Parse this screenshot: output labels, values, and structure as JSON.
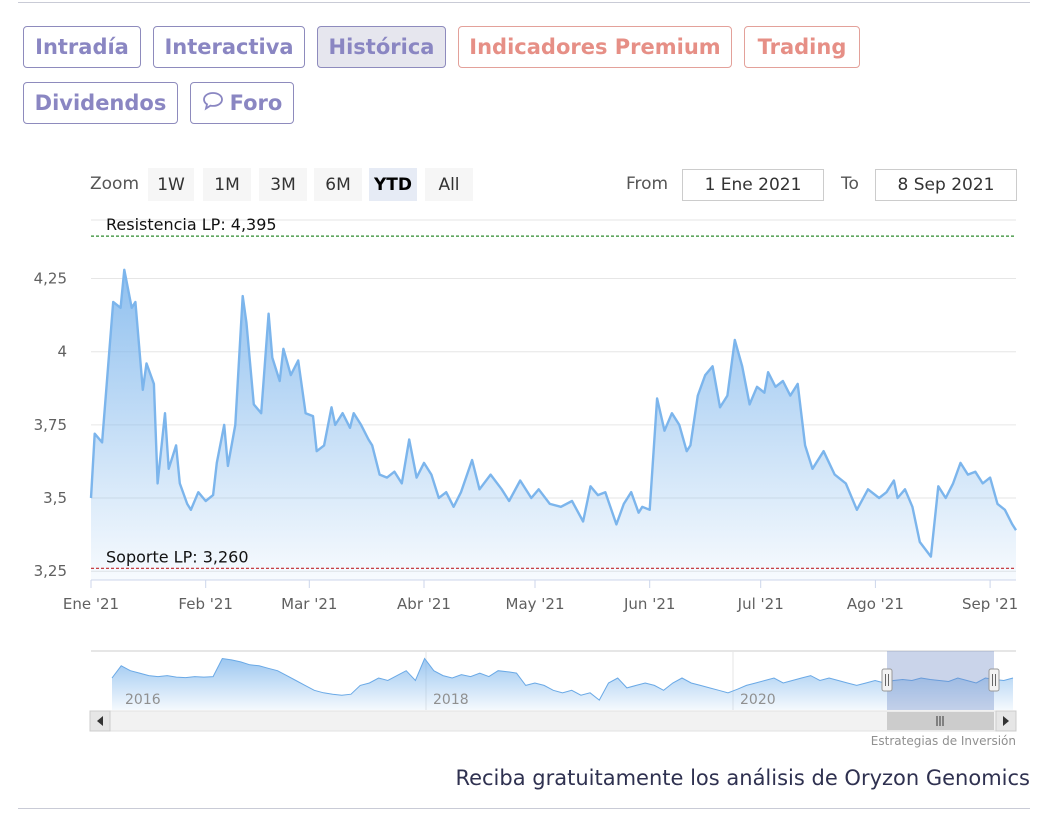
{
  "tabs": [
    {
      "label": "Intradía",
      "active": false,
      "premium": false
    },
    {
      "label": "Interactiva",
      "active": false,
      "premium": false
    },
    {
      "label": "Histórica",
      "active": true,
      "premium": false
    },
    {
      "label": "Indicadores Premium",
      "active": false,
      "premium": true
    },
    {
      "label": "Trading",
      "active": false,
      "premium": true
    },
    {
      "label": "Dividendos",
      "active": false,
      "premium": false
    },
    {
      "label": "Foro",
      "active": false,
      "premium": false,
      "icon": "speech-bubble-icon"
    }
  ],
  "range_selector": {
    "zoom_label": "Zoom",
    "buttons": [
      "1W",
      "1M",
      "3M",
      "6M",
      "YTD",
      "All"
    ],
    "selected": "YTD",
    "from_label": "From",
    "from_value": "1 Ene 2021",
    "to_label": "To",
    "to_value": "8 Sep 2021"
  },
  "chart_data": {
    "type": "area",
    "y_ticks": [
      "4,25",
      "4",
      "3,75",
      "3,5",
      "3,25"
    ],
    "y_tick_values": [
      4.25,
      4.0,
      3.75,
      3.5,
      3.25
    ],
    "x_ticks": [
      "Ene '21",
      "Feb '21",
      "Mar '21",
      "Abr '21",
      "May '21",
      "Jun '21",
      "Jul '21",
      "Ago '21",
      "Sep '21"
    ],
    "x_tick_dates": [
      "2021-01-01",
      "2021-02-01",
      "2021-03-01",
      "2021-04-01",
      "2021-05-01",
      "2021-06-01",
      "2021-07-01",
      "2021-08-01",
      "2021-09-01"
    ],
    "ylim": [
      3.22,
      4.45
    ],
    "xlim": [
      "2021-01-01",
      "2021-09-08"
    ],
    "resistance": {
      "label": "Resistencia LP: 4,395",
      "value": 4.395
    },
    "support": {
      "label": "Soporte LP: 3,260",
      "value": 3.26
    },
    "series": [
      {
        "x": [
          "2021-01-01",
          "2021-01-02",
          "2021-01-04",
          "2021-01-05",
          "2021-01-07",
          "2021-01-09",
          "2021-01-10",
          "2021-01-12",
          "2021-01-13",
          "2021-01-15",
          "2021-01-16",
          "2021-01-18",
          "2021-01-19",
          "2021-01-21",
          "2021-01-22",
          "2021-01-24",
          "2021-01-25",
          "2021-01-27",
          "2021-01-28",
          "2021-01-30",
          "2021-02-01",
          "2021-02-03",
          "2021-02-04",
          "2021-02-06",
          "2021-02-07",
          "2021-02-09",
          "2021-02-11",
          "2021-02-12",
          "2021-02-14",
          "2021-02-16",
          "2021-02-18",
          "2021-02-19",
          "2021-02-21",
          "2021-02-22",
          "2021-02-24",
          "2021-02-26",
          "2021-02-28",
          "2021-03-02",
          "2021-03-03",
          "2021-03-05",
          "2021-03-07",
          "2021-03-08",
          "2021-03-10",
          "2021-03-12",
          "2021-03-13",
          "2021-03-15",
          "2021-03-17",
          "2021-03-18",
          "2021-03-20",
          "2021-03-22",
          "2021-03-24",
          "2021-03-26",
          "2021-03-28",
          "2021-03-30",
          "2021-04-01",
          "2021-04-03",
          "2021-04-05",
          "2021-04-07",
          "2021-04-09",
          "2021-04-11",
          "2021-04-14",
          "2021-04-16",
          "2021-04-19",
          "2021-04-22",
          "2021-04-24",
          "2021-04-27",
          "2021-04-30",
          "2021-05-02",
          "2021-05-05",
          "2021-05-08",
          "2021-05-11",
          "2021-05-14",
          "2021-05-16",
          "2021-05-18",
          "2021-05-20",
          "2021-05-23",
          "2021-05-25",
          "2021-05-27",
          "2021-05-29",
          "2021-05-30",
          "2021-06-01",
          "2021-06-03",
          "2021-06-05",
          "2021-06-07",
          "2021-06-09",
          "2021-06-11",
          "2021-06-12",
          "2021-06-14",
          "2021-06-16",
          "2021-06-18",
          "2021-06-20",
          "2021-06-21",
          "2021-06-22",
          "2021-06-24",
          "2021-06-26",
          "2021-06-28",
          "2021-06-30",
          "2021-07-02",
          "2021-07-03",
          "2021-07-05",
          "2021-07-07",
          "2021-07-09",
          "2021-07-11",
          "2021-07-13",
          "2021-07-15",
          "2021-07-18",
          "2021-07-21",
          "2021-07-24",
          "2021-07-27",
          "2021-07-30",
          "2021-08-02",
          "2021-08-04",
          "2021-08-06",
          "2021-08-07",
          "2021-08-09",
          "2021-08-11",
          "2021-08-13",
          "2021-08-16",
          "2021-08-18",
          "2021-08-20",
          "2021-08-22",
          "2021-08-24",
          "2021-08-26",
          "2021-08-28",
          "2021-08-30",
          "2021-09-01",
          "2021-09-03",
          "2021-09-05",
          "2021-09-07",
          "2021-09-08"
        ],
        "y": [
          3.5,
          3.72,
          3.69,
          3.85,
          4.17,
          4.15,
          4.28,
          4.15,
          4.17,
          3.87,
          3.96,
          3.89,
          3.55,
          3.79,
          3.6,
          3.68,
          3.55,
          3.48,
          3.46,
          3.52,
          3.49,
          3.51,
          3.62,
          3.75,
          3.61,
          3.75,
          4.19,
          4.1,
          3.82,
          3.79,
          4.13,
          3.98,
          3.9,
          4.01,
          3.92,
          3.97,
          3.79,
          3.78,
          3.66,
          3.68,
          3.81,
          3.75,
          3.79,
          3.74,
          3.79,
          3.75,
          3.7,
          3.68,
          3.58,
          3.57,
          3.59,
          3.55,
          3.7,
          3.57,
          3.62,
          3.58,
          3.5,
          3.52,
          3.47,
          3.52,
          3.63,
          3.53,
          3.58,
          3.53,
          3.49,
          3.56,
          3.5,
          3.53,
          3.48,
          3.47,
          3.49,
          3.42,
          3.54,
          3.51,
          3.52,
          3.41,
          3.48,
          3.52,
          3.45,
          3.47,
          3.46,
          3.84,
          3.73,
          3.79,
          3.75,
          3.66,
          3.68,
          3.85,
          3.92,
          3.95,
          3.81,
          3.83,
          3.85,
          4.04,
          3.95,
          3.82,
          3.88,
          3.86,
          3.93,
          3.88,
          3.9,
          3.85,
          3.89,
          3.68,
          3.6,
          3.66,
          3.58,
          3.55,
          3.46,
          3.53,
          3.5,
          3.52,
          3.56,
          3.5,
          3.53,
          3.47,
          3.35,
          3.3,
          3.54,
          3.5,
          3.55,
          3.62,
          3.58,
          3.59,
          3.55,
          3.57,
          3.48,
          3.46,
          3.41,
          3.39
        ]
      }
    ],
    "navigator": {
      "x_ticks": [
        "2016",
        "2018",
        "2020"
      ]
    }
  },
  "credit": "Estrategias de Inversión",
  "cta_text": "Reciba gratuitamente los análisis de Oryzon Genomics",
  "colors": {
    "tab_text": "#8a86c2",
    "premium_text": "#e68f86",
    "series_line": "#7cb5ec",
    "resistance_line": "#2e8b2e",
    "support_line": "#c1272d"
  }
}
